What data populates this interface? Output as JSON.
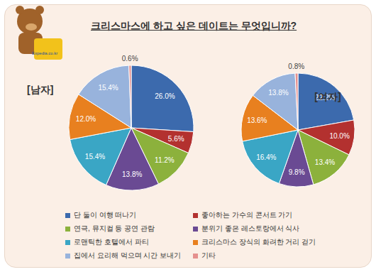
{
  "title": "크리스마스에 하고 싶은 데이트는 무엇입니까?",
  "logo": "Expedia.co.kr",
  "chart_data": [
    {
      "type": "pie",
      "title": "[남자]",
      "categories": [
        "단 둘이 여행 떠나기",
        "좋아하는 가수의 콘서트 가기",
        "연극, 뮤지컬 등 공연 관람",
        "분위기 좋은 레스토랑에서 식사",
        "로맨틱한 호텔에서 파티",
        "크리스마스 장식의 화려한 거리 걷기",
        "집에서 요리해 먹으며 시간 보내기",
        "기타"
      ],
      "values": [
        26.0,
        5.6,
        11.2,
        13.8,
        15.4,
        12.0,
        15.4,
        0.6
      ],
      "value_labels": [
        "26.0%",
        "5.6%",
        "11.2%",
        "13.8%",
        "15.4%",
        "12.0%",
        "15.4%",
        "0.6%"
      ],
      "colors": [
        "#3c6aad",
        "#b3312f",
        "#8cb13c",
        "#6a4a93",
        "#3aa6c5",
        "#e8801f",
        "#98b3dc",
        "#e5908e"
      ],
      "data_labels": true,
      "legend": "bottom"
    },
    {
      "type": "pie",
      "title": "[여자]",
      "categories": [
        "단 둘이 여행 떠나기",
        "좋아하는 가수의 콘서트 가기",
        "연극, 뮤지컬 등 공연 관람",
        "분위기 좋은 레스토랑에서 식사",
        "로맨틱한 호텔에서 파티",
        "크리스마스 장식의 화려한 거리 걷기",
        "집에서 요리해 먹으며 시간 보내기",
        "기타"
      ],
      "values": [
        22.2,
        10.0,
        13.4,
        9.8,
        16.4,
        13.6,
        13.8,
        0.8
      ],
      "value_labels": [
        "22.2%",
        "10.0%",
        "13.4%",
        "9.8%",
        "16.4%",
        "13.6%",
        "13.8%",
        "0.8%"
      ],
      "colors": [
        "#3c6aad",
        "#b3312f",
        "#8cb13c",
        "#6a4a93",
        "#3aa6c5",
        "#e8801f",
        "#98b3dc",
        "#e5908e"
      ],
      "data_labels": true,
      "legend": "bottom"
    }
  ]
}
